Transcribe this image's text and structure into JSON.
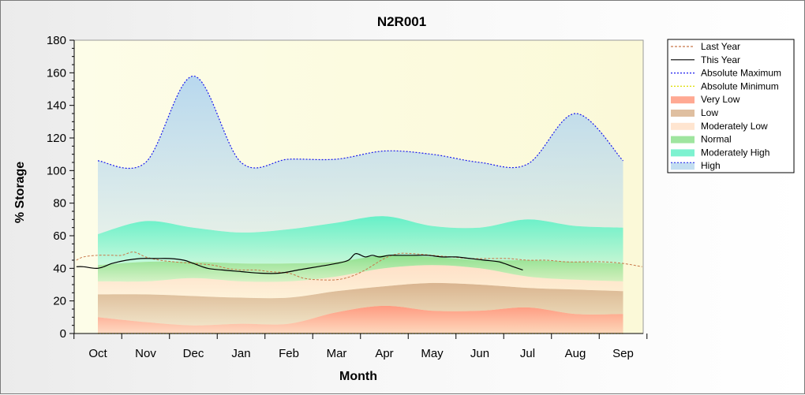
{
  "chart_data": {
    "type": "area",
    "title": "N2R001",
    "xlabel": "Month",
    "ylabel": "% Storage",
    "ylim": [
      0,
      180
    ],
    "yticks": [
      "0",
      "20",
      "40",
      "60",
      "80",
      "100",
      "120",
      "140",
      "160",
      "180"
    ],
    "categories": [
      "Oct",
      "Nov",
      "Dec",
      "Jan",
      "Feb",
      "Mar",
      "Apr",
      "May",
      "Jun",
      "Jul",
      "Aug",
      "Sep"
    ],
    "legend_position": "right",
    "grid": false,
    "x_index_note_free": true,
    "bands": [
      {
        "name": "Very Low",
        "color": "#ff9a80",
        "lower": [
          0,
          0,
          0,
          0,
          0,
          0,
          0,
          0,
          0,
          0,
          0,
          0
        ],
        "upper": [
          10,
          7,
          5,
          6,
          6,
          13,
          17,
          14,
          14,
          16,
          12,
          12
        ]
      },
      {
        "name": "Low",
        "color": "#d9b48f",
        "lower": [
          10,
          7,
          5,
          6,
          6,
          13,
          17,
          14,
          14,
          16,
          12,
          12
        ],
        "upper": [
          24,
          24,
          23,
          22,
          22,
          26,
          29,
          31,
          30,
          28,
          27,
          26
        ]
      },
      {
        "name": "Moderately Low",
        "color": "#ffe0c8",
        "lower": [
          24,
          24,
          23,
          22,
          22,
          26,
          29,
          31,
          30,
          28,
          27,
          26
        ],
        "upper": [
          32,
          32,
          34,
          32,
          32,
          35,
          40,
          42,
          40,
          35,
          33,
          32
        ]
      },
      {
        "name": "Normal",
        "color": "#8ee08e",
        "lower": [
          32,
          32,
          34,
          32,
          32,
          35,
          40,
          42,
          40,
          35,
          33,
          32
        ],
        "upper": [
          42,
          44,
          44,
          43,
          43,
          44,
          48,
          47,
          45,
          45,
          44,
          43
        ]
      },
      {
        "name": "Moderately High",
        "color": "#66f0c8",
        "lower": [
          42,
          44,
          44,
          43,
          43,
          44,
          48,
          47,
          45,
          45,
          44,
          43
        ],
        "upper": [
          61,
          69,
          65,
          62,
          64,
          68,
          72,
          66,
          65,
          70,
          66,
          65
        ]
      },
      {
        "name": "High",
        "color": "#b8d8ee",
        "lower": [
          61,
          69,
          65,
          62,
          64,
          68,
          72,
          66,
          65,
          70,
          66,
          65
        ],
        "upper": [
          106,
          105,
          158,
          105,
          107,
          107,
          112,
          110,
          105,
          104,
          135,
          106
        ]
      }
    ],
    "series": [
      {
        "name": "Last Year",
        "style": "dashed",
        "color": "#c8784a",
        "x": [
          -0.45,
          -0.3,
          0,
          0.3,
          0.5,
          0.75,
          1,
          1.3,
          1.6,
          2,
          2.4,
          2.7,
          3,
          3.3,
          3.6,
          4,
          4.3,
          4.6,
          5,
          5.3,
          5.6,
          6,
          6.3,
          6.6,
          7,
          7.4,
          7.8,
          8.2,
          8.6,
          9,
          9.4,
          9.8,
          10.2,
          10.6,
          11,
          11.4
        ],
        "y": [
          45,
          47,
          48,
          48,
          48,
          50,
          47,
          45,
          44,
          43,
          42,
          40,
          39,
          39,
          38,
          37,
          34,
          33,
          33,
          35,
          39,
          46,
          49,
          49,
          48,
          47,
          46,
          46,
          46,
          45,
          45,
          44,
          44,
          44,
          43,
          41
        ]
      },
      {
        "name": "This Year",
        "style": "solid",
        "color": "#000000",
        "x": [
          -0.45,
          -0.3,
          0,
          0.3,
          0.6,
          0.9,
          1.2,
          1.5,
          1.8,
          2,
          2.3,
          2.6,
          3,
          3.4,
          3.8,
          4.2,
          4.6,
          5,
          5.25,
          5.4,
          5.6,
          5.75,
          5.9,
          6.1,
          6.3,
          6.6,
          6.9,
          7.2,
          7.5,
          7.8,
          8.1,
          8.4,
          8.7,
          8.9
        ],
        "y": [
          41,
          41,
          40,
          43,
          45,
          46,
          46,
          46,
          45,
          43,
          40,
          39,
          38,
          37,
          37,
          39,
          41,
          43,
          45,
          49,
          47,
          48,
          47,
          48,
          48,
          48,
          48,
          47,
          47,
          46,
          45,
          44,
          41,
          39
        ]
      },
      {
        "name": "Absolute Maximum",
        "style": "dotted",
        "color": "#1a1aee",
        "ref_band": "High",
        "edge": "upper"
      },
      {
        "name": "Absolute Minimum",
        "style": "dotted",
        "color": "#dddd00",
        "ref_band": "Very Low",
        "edge": "lower"
      }
    ],
    "legend": [
      "Last Year",
      "This Year",
      "Absolute Maximum",
      "Absolute Minimum",
      "Very Low",
      "Low",
      "Moderately Low",
      "Normal",
      "Moderately High",
      "High"
    ]
  }
}
